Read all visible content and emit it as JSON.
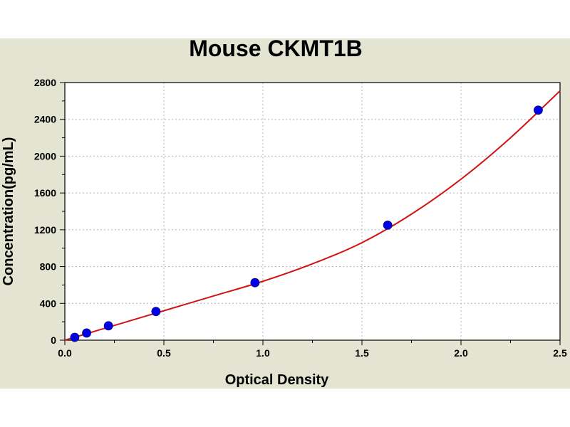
{
  "chart_data": {
    "type": "scatter",
    "title": "Mouse CKMT1B",
    "xlabel": "Optical Density",
    "ylabel": "Concentration(pg/mL)",
    "xlim": [
      0,
      2.5
    ],
    "ylim": [
      0,
      2800
    ],
    "x_ticks": [
      "0.0",
      "0.5",
      "1.0",
      "1.5",
      "2.0",
      "2.5"
    ],
    "y_ticks": [
      "0",
      "400",
      "800",
      "1200",
      "1600",
      "2000",
      "2400",
      "2800"
    ],
    "grid": true,
    "series": [
      {
        "kind": "points",
        "x": [
          0.05,
          0.11,
          0.22,
          0.46,
          0.96,
          1.63,
          2.39
        ],
        "y": [
          31,
          78,
          156,
          312,
          625,
          1250,
          2500
        ],
        "color": "#0000e6"
      },
      {
        "kind": "fitted curve",
        "x": [
          0,
          0.25,
          0.5,
          0.75,
          1.0,
          1.25,
          1.5,
          1.75,
          2.0,
          2.25,
          2.5
        ],
        "y": [
          0,
          160,
          320,
          480,
          640,
          830,
          1060,
          1370,
          1750,
          2200,
          2710
        ],
        "color": "#d01414"
      }
    ],
    "colors": {
      "background": "#e4e4d2",
      "plot_area": "#ffffff",
      "grid": "#b4b4b4"
    }
  }
}
